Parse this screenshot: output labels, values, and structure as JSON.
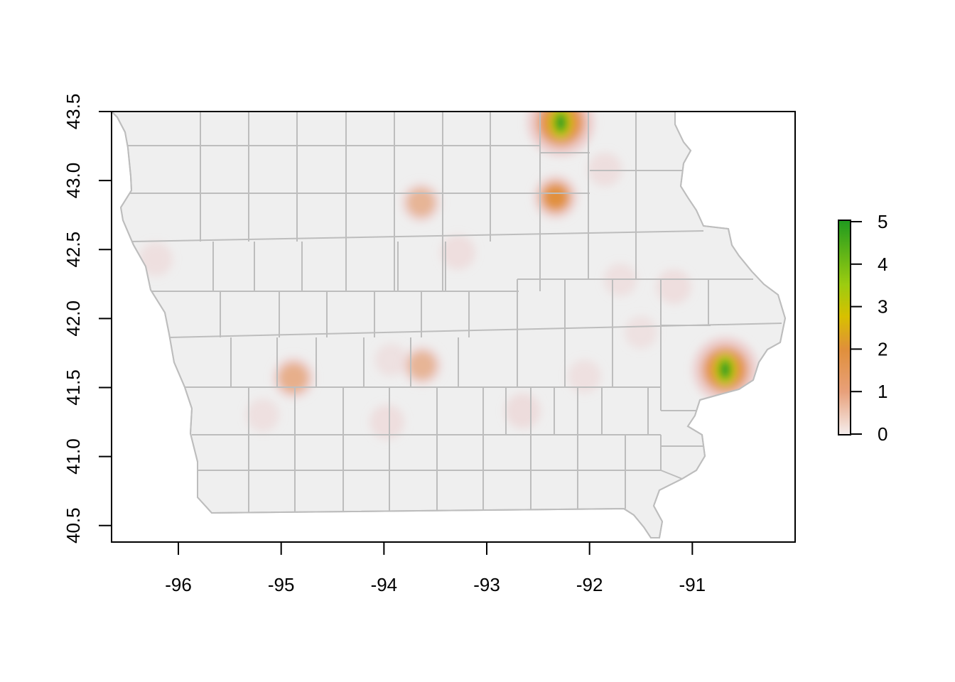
{
  "map": {
    "x_axis": {
      "range": [
        -96.65,
        -90.0
      ],
      "ticks": [
        {
          "value": -96,
          "label": "-96"
        },
        {
          "value": -95,
          "label": "-95"
        },
        {
          "value": -94,
          "label": "-94"
        },
        {
          "value": -93,
          "label": "-93"
        },
        {
          "value": -92,
          "label": "-92"
        },
        {
          "value": -91,
          "label": "-91"
        }
      ]
    },
    "y_axis": {
      "range": [
        40.38,
        43.5
      ],
      "ticks": [
        {
          "value": 40.5,
          "label": "40.5"
        },
        {
          "value": 41.0,
          "label": "41.0"
        },
        {
          "value": 41.5,
          "label": "41.5"
        },
        {
          "value": 42.0,
          "label": "42.0"
        },
        {
          "value": 42.5,
          "label": "42.5"
        },
        {
          "value": 43.0,
          "label": "43.0"
        },
        {
          "value": 43.5,
          "label": "43.5"
        }
      ]
    },
    "colors": {
      "land_fill": "#efefef",
      "county_border": "#bdbdbd",
      "low": "#f2e4e4",
      "mid": "#e8a070",
      "high_mid": "#d8c000",
      "high": "#1f9a1f"
    },
    "hotspots": [
      {
        "lon": -92.28,
        "lat": 43.42,
        "value": 5.0
      },
      {
        "lon": -90.68,
        "lat": 41.63,
        "value": 4.7
      },
      {
        "lon": -92.33,
        "lat": 42.88,
        "value": 1.7
      },
      {
        "lon": -94.88,
        "lat": 41.57,
        "value": 1.4
      },
      {
        "lon": -93.64,
        "lat": 42.84,
        "value": 1.1
      },
      {
        "lon": -93.63,
        "lat": 41.66,
        "value": 1.1
      },
      {
        "lon": -92.65,
        "lat": 41.33,
        "value": 0.6
      },
      {
        "lon": -93.28,
        "lat": 42.48,
        "value": 0.5
      },
      {
        "lon": -91.18,
        "lat": 42.23,
        "value": 0.5
      },
      {
        "lon": -93.97,
        "lat": 41.25,
        "value": 0.5
      },
      {
        "lon": -91.85,
        "lat": 43.08,
        "value": 0.4
      },
      {
        "lon": -96.22,
        "lat": 42.43,
        "value": 0.35
      },
      {
        "lon": -95.18,
        "lat": 41.3,
        "value": 0.3
      },
      {
        "lon": -92.05,
        "lat": 41.58,
        "value": 0.3
      },
      {
        "lon": -91.7,
        "lat": 42.28,
        "value": 0.25
      },
      {
        "lon": -91.5,
        "lat": 41.9,
        "value": 0.2
      },
      {
        "lon": -93.93,
        "lat": 41.7,
        "value": 0.2
      }
    ],
    "legend": {
      "ticks": [
        {
          "value": 0,
          "label": "0"
        },
        {
          "value": 1,
          "label": "1"
        },
        {
          "value": 2,
          "label": "2"
        },
        {
          "value": 3,
          "label": "3"
        },
        {
          "value": 4,
          "label": "4"
        },
        {
          "value": 5,
          "label": "5"
        }
      ]
    }
  }
}
